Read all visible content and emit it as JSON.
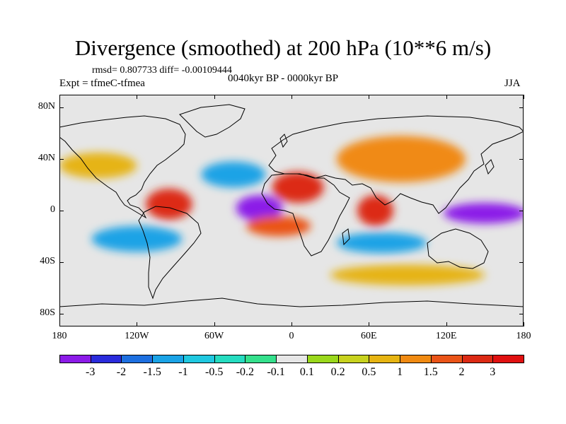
{
  "title": "Divergence (smoothed) at 200 hPa (10**6 m/s)",
  "stats": "rmsd= 0.807733 diff= -0.00109444",
  "experiment": "Expt = tfmeC-tfmea",
  "period": "0040kyr BP - 0000kyr BP",
  "season": "JJA",
  "chart_data": {
    "type": "heatmap",
    "title": "Divergence (smoothed) at 200 hPa (10**6 m/s)",
    "projection": "cylindrical-equidistant",
    "xlim": [
      -180,
      180
    ],
    "ylim": [
      -90,
      90
    ],
    "x_ticks": [
      {
        "value": -180,
        "label": "180"
      },
      {
        "value": -120,
        "label": "120W"
      },
      {
        "value": -60,
        "label": "60W"
      },
      {
        "value": 0,
        "label": "0"
      },
      {
        "value": 60,
        "label": "60E"
      },
      {
        "value": 120,
        "label": "120E"
      },
      {
        "value": 180,
        "label": "180"
      }
    ],
    "y_ticks": [
      {
        "value": 80,
        "label": "80N"
      },
      {
        "value": 40,
        "label": "40N"
      },
      {
        "value": 0,
        "label": "0"
      },
      {
        "value": -40,
        "label": "40S"
      },
      {
        "value": -80,
        "label": "80S"
      }
    ],
    "colorbar": {
      "levels": [
        "-3",
        "-2",
        "-1.5",
        "-1",
        "-0.5",
        "-0.2",
        "-0.1",
        "0.1",
        "0.2",
        "0.5",
        "1",
        "1.5",
        "2",
        "3"
      ],
      "colors": [
        "#8c1be8",
        "#2a2bdc",
        "#1d6fe0",
        "#1aa3e6",
        "#1fc8e0",
        "#25dcc0",
        "#34e08c",
        "#e6e6e6",
        "#9ad81c",
        "#c8d21e",
        "#e6b412",
        "#f08a12",
        "#ea5418",
        "#dc2a14",
        "#e01010"
      ]
    },
    "features": [
      {
        "name": "tropical-atlantic-convergence",
        "lon": -25,
        "lat": 2,
        "rx": 18,
        "ry": 10,
        "value": -3.2
      },
      {
        "name": "western-pacific-convergence",
        "lon": 150,
        "lat": -2,
        "rx": 32,
        "ry": 8,
        "value": -3.0
      },
      {
        "name": "eastern-pacific-divergence",
        "lon": -95,
        "lat": 5,
        "rx": 18,
        "ry": 12,
        "value": 2.6
      },
      {
        "name": "north-africa-divergence",
        "lon": 5,
        "lat": 18,
        "rx": 20,
        "ry": 12,
        "value": 2.8
      },
      {
        "name": "indian-ocean-divergence",
        "lon": 65,
        "lat": 0,
        "rx": 14,
        "ry": 12,
        "value": 2.6
      },
      {
        "name": "south-atlantic-divergence",
        "lon": -10,
        "lat": -12,
        "rx": 25,
        "ry": 8,
        "value": 1.8
      },
      {
        "name": "south-indian-convergence",
        "lon": 70,
        "lat": -25,
        "rx": 35,
        "ry": 8,
        "value": -1.0
      },
      {
        "name": "north-atlantic-convergence",
        "lon": -45,
        "lat": 28,
        "rx": 25,
        "ry": 10,
        "value": -1.2
      },
      {
        "name": "asia-divergence",
        "lon": 85,
        "lat": 40,
        "rx": 50,
        "ry": 18,
        "value": 1.2
      },
      {
        "name": "south-pacific-convergence",
        "lon": -120,
        "lat": -22,
        "rx": 35,
        "ry": 10,
        "value": -1.0
      },
      {
        "name": "north-pacific-divergence",
        "lon": -150,
        "lat": 35,
        "rx": 30,
        "ry": 10,
        "value": 0.8
      },
      {
        "name": "southern-ocean-divergence",
        "lon": 90,
        "lat": -50,
        "rx": 60,
        "ry": 8,
        "value": 0.7
      }
    ]
  }
}
